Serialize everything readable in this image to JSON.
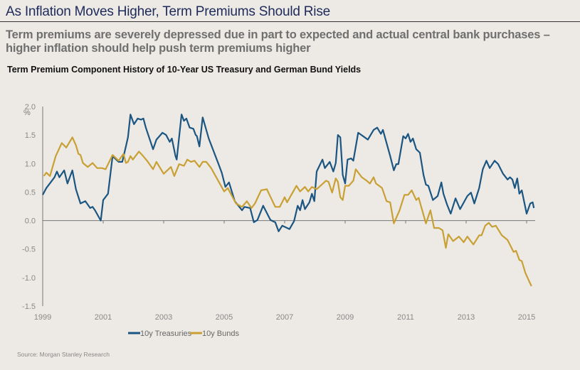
{
  "header": {
    "title": "As Inflation Moves Higher, Term Premiums Should Rise",
    "subtitle": "Term premiums are severely depressed due in part to expected and actual central bank purchases – higher inflation should help push term premiums higher"
  },
  "source": "Source: Morgan Stanley Research",
  "chart_data": {
    "type": "line",
    "title": "Term Premium Component  History of 10-Year US Treasury and German Bund Yields",
    "ylabel": "%",
    "xlabel": "",
    "xlim": [
      1999,
      2015
    ],
    "ylim": [
      -1.5,
      2.0
    ],
    "xticks": [
      "1999",
      "2001",
      "2003",
      "2005",
      "2007",
      "2009",
      "2011",
      "2013",
      "2015"
    ],
    "yticks": [
      "2.0",
      "1.5",
      "1.0",
      "0.5",
      "0.0",
      "-0.5",
      "-1.0",
      "-1.5"
    ],
    "grid": false,
    "legend": "bottom-center",
    "series": [
      {
        "name": "10y Treasuries",
        "color": "#1b5581",
        "points": [
          [
            1999.0,
            0.45
          ],
          [
            1999.12,
            0.57
          ],
          [
            1999.39,
            0.76
          ],
          [
            1999.47,
            0.86
          ],
          [
            1999.55,
            0.76
          ],
          [
            1999.71,
            0.88
          ],
          [
            1999.82,
            0.65
          ],
          [
            1999.98,
            0.88
          ],
          [
            2000.1,
            0.55
          ],
          [
            2000.25,
            0.3
          ],
          [
            2000.41,
            0.34
          ],
          [
            2000.57,
            0.22
          ],
          [
            2000.65,
            0.24
          ],
          [
            2000.73,
            0.18
          ],
          [
            2000.92,
            0.0
          ],
          [
            2001.0,
            0.36
          ],
          [
            2001.16,
            0.47
          ],
          [
            2001.31,
            1.13
          ],
          [
            2001.51,
            1.03
          ],
          [
            2001.63,
            1.03
          ],
          [
            2001.75,
            1.3
          ],
          [
            2001.82,
            1.46
          ],
          [
            2001.9,
            1.86
          ],
          [
            2002.02,
            1.69
          ],
          [
            2002.14,
            1.79
          ],
          [
            2002.25,
            1.77
          ],
          [
            2002.33,
            1.79
          ],
          [
            2002.41,
            1.63
          ],
          [
            2002.65,
            1.25
          ],
          [
            2002.76,
            1.42
          ],
          [
            2002.96,
            1.54
          ],
          [
            2003.08,
            1.5
          ],
          [
            2003.2,
            1.38
          ],
          [
            2003.27,
            1.44
          ],
          [
            2003.39,
            1.13
          ],
          [
            2003.43,
            1.07
          ],
          [
            2003.59,
            1.86
          ],
          [
            2003.67,
            1.75
          ],
          [
            2003.75,
            1.79
          ],
          [
            2003.86,
            1.63
          ],
          [
            2003.98,
            1.61
          ],
          [
            2004.06,
            1.5
          ],
          [
            2004.1,
            1.48
          ],
          [
            2004.18,
            1.3
          ],
          [
            2004.29,
            1.81
          ],
          [
            2004.49,
            1.44
          ],
          [
            2004.8,
            1.01
          ],
          [
            2004.92,
            0.84
          ],
          [
            2005.04,
            0.59
          ],
          [
            2005.16,
            0.67
          ],
          [
            2005.35,
            0.34
          ],
          [
            2005.59,
            0.18
          ],
          [
            2005.67,
            0.24
          ],
          [
            2005.86,
            0.22
          ],
          [
            2005.98,
            -0.03
          ],
          [
            2006.1,
            0.01
          ],
          [
            2006.29,
            0.26
          ],
          [
            2006.53,
            0.01
          ],
          [
            2006.69,
            -0.03
          ],
          [
            2006.8,
            -0.19
          ],
          [
            2006.92,
            -0.09
          ],
          [
            2007.0,
            -0.11
          ],
          [
            2007.16,
            -0.15
          ],
          [
            2007.31,
            -0.01
          ],
          [
            2007.43,
            0.26
          ],
          [
            2007.51,
            0.18
          ],
          [
            2007.59,
            0.36
          ],
          [
            2007.67,
            0.2
          ],
          [
            2007.82,
            0.32
          ],
          [
            2007.9,
            0.47
          ],
          [
            2007.98,
            0.34
          ],
          [
            2008.06,
            0.86
          ],
          [
            2008.25,
            1.07
          ],
          [
            2008.33,
            0.92
          ],
          [
            2008.49,
            1.03
          ],
          [
            2008.61,
            0.86
          ],
          [
            2008.69,
            1.01
          ],
          [
            2008.76,
            1.5
          ],
          [
            2008.84,
            1.46
          ],
          [
            2008.92,
            0.8
          ],
          [
            2009.0,
            0.65
          ],
          [
            2009.08,
            1.07
          ],
          [
            2009.2,
            1.09
          ],
          [
            2009.27,
            1.05
          ],
          [
            2009.43,
            1.54
          ],
          [
            2009.59,
            1.48
          ],
          [
            2009.75,
            1.42
          ],
          [
            2009.94,
            1.59
          ],
          [
            2010.06,
            1.63
          ],
          [
            2010.18,
            1.52
          ],
          [
            2010.25,
            1.59
          ],
          [
            2010.37,
            1.36
          ],
          [
            2010.49,
            1.13
          ],
          [
            2010.61,
            0.88
          ],
          [
            2010.69,
            0.99
          ],
          [
            2010.76,
            0.99
          ],
          [
            2010.92,
            1.48
          ],
          [
            2011.0,
            1.44
          ],
          [
            2011.08,
            1.52
          ],
          [
            2011.16,
            1.38
          ],
          [
            2011.24,
            1.44
          ],
          [
            2011.35,
            1.25
          ],
          [
            2011.47,
            1.19
          ],
          [
            2011.59,
            0.8
          ],
          [
            2011.67,
            0.63
          ],
          [
            2011.75,
            0.61
          ],
          [
            2011.9,
            0.36
          ],
          [
            2012.06,
            0.43
          ],
          [
            2012.18,
            0.67
          ],
          [
            2012.25,
            0.47
          ],
          [
            2012.37,
            0.28
          ],
          [
            2012.49,
            0.12
          ],
          [
            2012.65,
            0.39
          ],
          [
            2012.8,
            0.2
          ],
          [
            2013.04,
            0.43
          ],
          [
            2013.16,
            0.49
          ],
          [
            2013.27,
            0.3
          ],
          [
            2013.43,
            0.57
          ],
          [
            2013.55,
            0.9
          ],
          [
            2013.67,
            1.05
          ],
          [
            2013.78,
            0.92
          ],
          [
            2013.94,
            1.05
          ],
          [
            2014.06,
            0.99
          ],
          [
            2014.22,
            0.82
          ],
          [
            2014.37,
            0.72
          ],
          [
            2014.45,
            0.76
          ],
          [
            2014.53,
            0.72
          ],
          [
            2014.61,
            0.57
          ],
          [
            2014.69,
            0.74
          ],
          [
            2014.76,
            0.47
          ],
          [
            2014.84,
            0.53
          ],
          [
            2015.0,
            0.12
          ],
          [
            2015.12,
            0.3
          ],
          [
            2015.2,
            0.32
          ],
          [
            2015.24,
            0.22
          ]
        ]
      },
      {
        "name": "10y Bunds",
        "color": "#c9a033",
        "points": [
          [
            1999.04,
            0.78
          ],
          [
            1999.12,
            0.84
          ],
          [
            1999.24,
            0.78
          ],
          [
            1999.43,
            1.13
          ],
          [
            1999.63,
            1.36
          ],
          [
            1999.78,
            1.28
          ],
          [
            1999.98,
            1.46
          ],
          [
            2000.1,
            1.32
          ],
          [
            2000.18,
            1.17
          ],
          [
            2000.25,
            1.15
          ],
          [
            2000.33,
            1.01
          ],
          [
            2000.49,
            0.94
          ],
          [
            2000.65,
            1.01
          ],
          [
            2000.8,
            0.92
          ],
          [
            2000.96,
            0.92
          ],
          [
            2001.08,
            0.9
          ],
          [
            2001.31,
            1.15
          ],
          [
            2001.51,
            1.05
          ],
          [
            2001.67,
            1.17
          ],
          [
            2001.75,
            1.01
          ],
          [
            2001.82,
            1.03
          ],
          [
            2001.9,
            1.13
          ],
          [
            2001.98,
            1.07
          ],
          [
            2002.18,
            1.21
          ],
          [
            2002.29,
            1.15
          ],
          [
            2002.45,
            1.05
          ],
          [
            2002.65,
            0.9
          ],
          [
            2002.76,
            1.03
          ],
          [
            2003.0,
            0.82
          ],
          [
            2003.24,
            0.94
          ],
          [
            2003.35,
            0.78
          ],
          [
            2003.51,
            0.99
          ],
          [
            2003.67,
            0.96
          ],
          [
            2003.78,
            1.07
          ],
          [
            2003.9,
            1.03
          ],
          [
            2004.02,
            1.05
          ],
          [
            2004.18,
            0.94
          ],
          [
            2004.29,
            1.03
          ],
          [
            2004.41,
            1.03
          ],
          [
            2004.57,
            0.92
          ],
          [
            2005.0,
            0.51
          ],
          [
            2005.12,
            0.57
          ],
          [
            2005.39,
            0.3
          ],
          [
            2005.59,
            0.24
          ],
          [
            2005.75,
            0.34
          ],
          [
            2005.9,
            0.22
          ],
          [
            2006.02,
            0.3
          ],
          [
            2006.22,
            0.53
          ],
          [
            2006.41,
            0.55
          ],
          [
            2006.69,
            0.24
          ],
          [
            2006.84,
            0.24
          ],
          [
            2007.0,
            0.41
          ],
          [
            2007.08,
            0.32
          ],
          [
            2007.39,
            0.61
          ],
          [
            2007.51,
            0.51
          ],
          [
            2007.67,
            0.59
          ],
          [
            2007.78,
            0.51
          ],
          [
            2007.9,
            0.59
          ],
          [
            2008.06,
            0.55
          ],
          [
            2008.37,
            0.7
          ],
          [
            2008.45,
            0.68
          ],
          [
            2008.57,
            0.49
          ],
          [
            2008.69,
            0.74
          ],
          [
            2008.76,
            0.68
          ],
          [
            2008.84,
            0.41
          ],
          [
            2008.92,
            0.36
          ],
          [
            2009.0,
            0.61
          ],
          [
            2009.12,
            0.61
          ],
          [
            2009.27,
            0.7
          ],
          [
            2009.35,
            0.9
          ],
          [
            2009.55,
            0.76
          ],
          [
            2009.71,
            0.7
          ],
          [
            2009.82,
            0.65
          ],
          [
            2009.94,
            0.76
          ],
          [
            2010.02,
            0.65
          ],
          [
            2010.22,
            0.57
          ],
          [
            2010.37,
            0.34
          ],
          [
            2010.49,
            0.32
          ],
          [
            2010.61,
            -0.05
          ],
          [
            2010.8,
            0.18
          ],
          [
            2010.96,
            0.45
          ],
          [
            2011.08,
            0.45
          ],
          [
            2011.2,
            0.53
          ],
          [
            2011.35,
            0.36
          ],
          [
            2011.43,
            0.4
          ],
          [
            2011.67,
            -0.05
          ],
          [
            2011.82,
            0.18
          ],
          [
            2011.94,
            -0.13
          ],
          [
            2012.1,
            -0.13
          ],
          [
            2012.22,
            -0.17
          ],
          [
            2012.33,
            -0.48
          ],
          [
            2012.41,
            -0.24
          ],
          [
            2012.57,
            -0.36
          ],
          [
            2012.76,
            -0.28
          ],
          [
            2012.92,
            -0.38
          ],
          [
            2013.04,
            -0.28
          ],
          [
            2013.24,
            -0.42
          ],
          [
            2013.43,
            -0.26
          ],
          [
            2013.51,
            -0.26
          ],
          [
            2013.63,
            -0.09
          ],
          [
            2013.75,
            -0.04
          ],
          [
            2013.86,
            -0.11
          ],
          [
            2013.98,
            -0.09
          ],
          [
            2014.18,
            -0.26
          ],
          [
            2014.37,
            -0.34
          ],
          [
            2014.57,
            -0.55
          ],
          [
            2014.65,
            -0.53
          ],
          [
            2014.76,
            -0.69
          ],
          [
            2014.84,
            -0.71
          ],
          [
            2014.96,
            -0.92
          ],
          [
            2015.08,
            -1.06
          ],
          [
            2015.16,
            -1.15
          ]
        ]
      }
    ]
  }
}
